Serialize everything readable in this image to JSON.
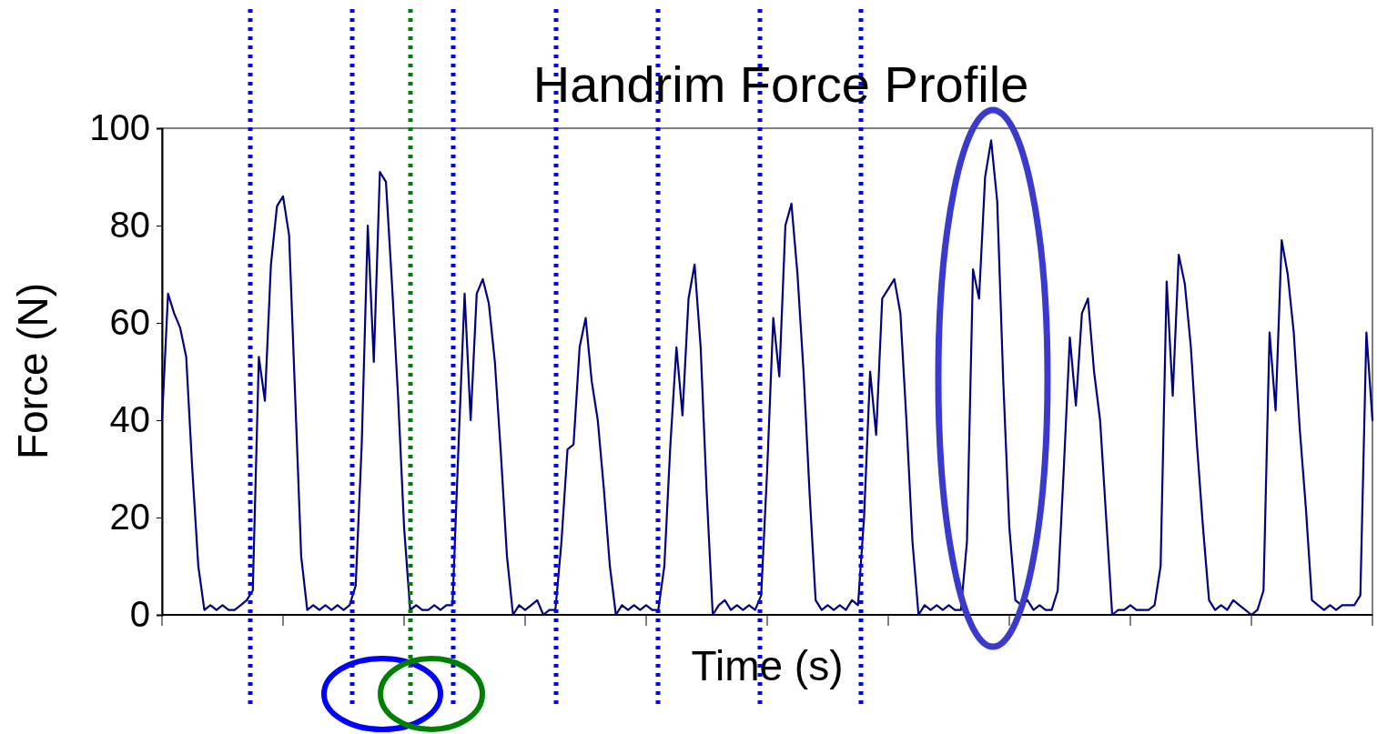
{
  "chart_data": {
    "type": "line",
    "title": "Handrim Force Profile",
    "xlabel": "Time (s)",
    "ylabel": "Force (N)",
    "categories": [
      null,
      null,
      null,
      null,
      null,
      null,
      null,
      null,
      null,
      null,
      null,
      null,
      null,
      null,
      null,
      null,
      null,
      null,
      null,
      null,
      null,
      null,
      null,
      null,
      null,
      null,
      null,
      null,
      null,
      null,
      null,
      null,
      null,
      null,
      null,
      null,
      null,
      null,
      null,
      null,
      null,
      null,
      null,
      null,
      null,
      null,
      null,
      null,
      null,
      null,
      null,
      null,
      null,
      null,
      null,
      null,
      null,
      null,
      null,
      null,
      null,
      null,
      null,
      null,
      null,
      null,
      null,
      null,
      null,
      null,
      null,
      null,
      null,
      null,
      null,
      null,
      null,
      null,
      null,
      null,
      null,
      null,
      null,
      null,
      null,
      null,
      null,
      null,
      null,
      null,
      null,
      null,
      null,
      null,
      null,
      null,
      null,
      null,
      null,
      null,
      null,
      null,
      null,
      null,
      null,
      null,
      null,
      null,
      null,
      null,
      null,
      null,
      null,
      null,
      null,
      null,
      null,
      null,
      null,
      null,
      null,
      null,
      null,
      null,
      null,
      null,
      null,
      null,
      null,
      null,
      null,
      null,
      null,
      null,
      null,
      null,
      null,
      null,
      null,
      null,
      null,
      null,
      null,
      null,
      null,
      null,
      null,
      null,
      null,
      null,
      null,
      null,
      null,
      null,
      null,
      null,
      null,
      null,
      null,
      null,
      null,
      null,
      null,
      null,
      null,
      null,
      null,
      null,
      null,
      null,
      null,
      null,
      null,
      null,
      null,
      null,
      null,
      null,
      null,
      null,
      null,
      null,
      null,
      null,
      null,
      null,
      null,
      null,
      null,
      null,
      null,
      null,
      null,
      null,
      null,
      null,
      null,
      null,
      null,
      null,
      null
    ],
    "ylim": [
      0,
      100
    ],
    "yticks": [
      0,
      20,
      40,
      60,
      80,
      100
    ],
    "tick_labels": "y",
    "grid": false,
    "series": [
      {
        "color": "#000080",
        "values": [
          40,
          66,
          62,
          59,
          53,
          30,
          10,
          1,
          2,
          1,
          2,
          1,
          1,
          2,
          3,
          5,
          53,
          44,
          72,
          84,
          86,
          78,
          45,
          12,
          1,
          2,
          1,
          2,
          1,
          2,
          1,
          2,
          6,
          35,
          80,
          52,
          91,
          89,
          68,
          45,
          18,
          1,
          2,
          1,
          1,
          2,
          1,
          2,
          2,
          35,
          66,
          40,
          66,
          69,
          64,
          52,
          33,
          12,
          0,
          2,
          1,
          2,
          3,
          0,
          1,
          1,
          15,
          34,
          35,
          55,
          61,
          48,
          40,
          26,
          10,
          0,
          2,
          1,
          2,
          1,
          2,
          1,
          1,
          10,
          35,
          55,
          41,
          65,
          72,
          55,
          25,
          0,
          2,
          3,
          1,
          2,
          1,
          2,
          1,
          4,
          30,
          61,
          49,
          80,
          84.5,
          70,
          50,
          25,
          3,
          1,
          2,
          1,
          2,
          1,
          3,
          2,
          20,
          50,
          37,
          65,
          67,
          69,
          62,
          40,
          15,
          0,
          2,
          1,
          2,
          1,
          2,
          1,
          1,
          15,
          71,
          65,
          90,
          97.5,
          85,
          48,
          18,
          3,
          2,
          3,
          1,
          2,
          1,
          1,
          5,
          30,
          57,
          43,
          62,
          65,
          50,
          40,
          20,
          0,
          1,
          1,
          2,
          1,
          1,
          1,
          2,
          10,
          68.5,
          45,
          74,
          68,
          55,
          35,
          18,
          3,
          1,
          2,
          1,
          3,
          2,
          1,
          0,
          1,
          5,
          58,
          42,
          77,
          70,
          58,
          38,
          22,
          3,
          2,
          1,
          2,
          1,
          2,
          2,
          2,
          4,
          58,
          40
        ]
      }
    ]
  }
}
